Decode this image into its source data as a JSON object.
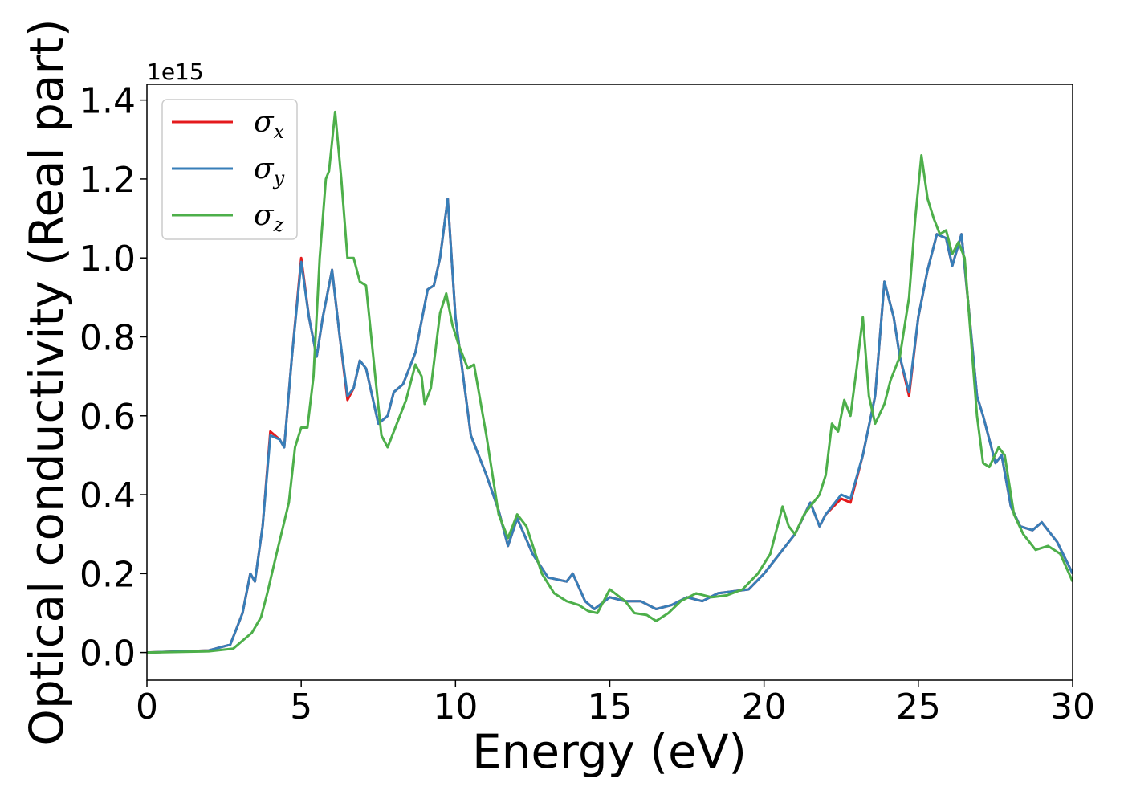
{
  "chart_data": {
    "type": "line",
    "xlabel": "Energy (eV)",
    "ylabel": "Optical conductivity (Real part)",
    "y_offset_text": "1e15",
    "xlim": [
      0,
      30
    ],
    "ylim": [
      -0.07,
      1.44
    ],
    "xticks": [
      0,
      5,
      10,
      15,
      20,
      25,
      30
    ],
    "xtick_labels": [
      "0",
      "5",
      "10",
      "15",
      "20",
      "25",
      "30"
    ],
    "yticks": [
      0.0,
      0.2,
      0.4,
      0.6,
      0.8,
      1.0,
      1.2,
      1.4
    ],
    "ytick_labels": [
      "0.0",
      "0.2",
      "0.4",
      "0.6",
      "0.8",
      "1.0",
      "1.2",
      "1.4"
    ],
    "grid": false,
    "legend_position": "upper-left",
    "series": [
      {
        "name": "σx",
        "symbol": "σ",
        "subscript": "x",
        "color": "#e41a1c",
        "points": [
          [
            0,
            0
          ],
          [
            2,
            0.005
          ],
          [
            2.7,
            0.02
          ],
          [
            3.1,
            0.1
          ],
          [
            3.35,
            0.2
          ],
          [
            3.5,
            0.18
          ],
          [
            3.75,
            0.32
          ],
          [
            4.0,
            0.56
          ],
          [
            4.3,
            0.54
          ],
          [
            4.45,
            0.52
          ],
          [
            4.7,
            0.75
          ],
          [
            5.0,
            1.0
          ],
          [
            5.25,
            0.85
          ],
          [
            5.5,
            0.75
          ],
          [
            5.7,
            0.85
          ],
          [
            6.0,
            0.97
          ],
          [
            6.25,
            0.8
          ],
          [
            6.5,
            0.64
          ],
          [
            6.7,
            0.67
          ],
          [
            6.9,
            0.74
          ],
          [
            7.1,
            0.72
          ],
          [
            7.5,
            0.58
          ],
          [
            7.8,
            0.6
          ],
          [
            8.0,
            0.66
          ],
          [
            8.3,
            0.68
          ],
          [
            8.7,
            0.76
          ],
          [
            9.1,
            0.92
          ],
          [
            9.3,
            0.93
          ],
          [
            9.5,
            1.0
          ],
          [
            9.75,
            1.15
          ],
          [
            10.0,
            0.85
          ],
          [
            10.5,
            0.55
          ],
          [
            11.0,
            0.45
          ],
          [
            11.4,
            0.36
          ],
          [
            11.7,
            0.27
          ],
          [
            12.0,
            0.34
          ],
          [
            12.5,
            0.25
          ],
          [
            13.0,
            0.19
          ],
          [
            13.6,
            0.18
          ],
          [
            13.8,
            0.2
          ],
          [
            14.2,
            0.13
          ],
          [
            14.5,
            0.11
          ],
          [
            15.0,
            0.14
          ],
          [
            15.5,
            0.13
          ],
          [
            16.0,
            0.13
          ],
          [
            16.5,
            0.11
          ],
          [
            17.0,
            0.12
          ],
          [
            17.5,
            0.14
          ],
          [
            18.0,
            0.13
          ],
          [
            18.5,
            0.15
          ],
          [
            19.5,
            0.16
          ],
          [
            20.0,
            0.2
          ],
          [
            20.5,
            0.25
          ],
          [
            21.0,
            0.3
          ],
          [
            21.5,
            0.38
          ],
          [
            21.8,
            0.32
          ],
          [
            22.0,
            0.35
          ],
          [
            22.5,
            0.39
          ],
          [
            22.8,
            0.38
          ],
          [
            23.2,
            0.5
          ],
          [
            23.6,
            0.65
          ],
          [
            23.9,
            0.94
          ],
          [
            24.2,
            0.85
          ],
          [
            24.4,
            0.75
          ],
          [
            24.7,
            0.65
          ],
          [
            25.0,
            0.85
          ],
          [
            25.3,
            0.97
          ],
          [
            25.6,
            1.06
          ],
          [
            25.9,
            1.05
          ],
          [
            26.1,
            0.98
          ],
          [
            26.4,
            1.06
          ],
          [
            26.6,
            0.9
          ],
          [
            26.9,
            0.65
          ],
          [
            27.1,
            0.6
          ],
          [
            27.5,
            0.48
          ],
          [
            27.7,
            0.5
          ],
          [
            28.0,
            0.37
          ],
          [
            28.3,
            0.32
          ],
          [
            28.7,
            0.31
          ],
          [
            29.0,
            0.33
          ],
          [
            29.5,
            0.28
          ],
          [
            30.0,
            0.2
          ]
        ]
      },
      {
        "name": "σy",
        "symbol": "σ",
        "subscript": "y",
        "color": "#377eb8",
        "points": [
          [
            0,
            0
          ],
          [
            2,
            0.005
          ],
          [
            2.7,
            0.02
          ],
          [
            3.1,
            0.1
          ],
          [
            3.35,
            0.2
          ],
          [
            3.5,
            0.18
          ],
          [
            3.75,
            0.32
          ],
          [
            4.0,
            0.55
          ],
          [
            4.3,
            0.54
          ],
          [
            4.45,
            0.52
          ],
          [
            4.7,
            0.75
          ],
          [
            5.0,
            0.99
          ],
          [
            5.25,
            0.85
          ],
          [
            5.5,
            0.75
          ],
          [
            5.7,
            0.85
          ],
          [
            6.0,
            0.97
          ],
          [
            6.25,
            0.8
          ],
          [
            6.5,
            0.65
          ],
          [
            6.7,
            0.67
          ],
          [
            6.9,
            0.74
          ],
          [
            7.1,
            0.72
          ],
          [
            7.5,
            0.58
          ],
          [
            7.8,
            0.6
          ],
          [
            8.0,
            0.66
          ],
          [
            8.3,
            0.68
          ],
          [
            8.7,
            0.76
          ],
          [
            9.1,
            0.92
          ],
          [
            9.3,
            0.93
          ],
          [
            9.5,
            1.0
          ],
          [
            9.75,
            1.15
          ],
          [
            10.0,
            0.85
          ],
          [
            10.5,
            0.55
          ],
          [
            11.0,
            0.45
          ],
          [
            11.4,
            0.36
          ],
          [
            11.7,
            0.27
          ],
          [
            12.0,
            0.34
          ],
          [
            12.5,
            0.25
          ],
          [
            13.0,
            0.19
          ],
          [
            13.6,
            0.18
          ],
          [
            13.8,
            0.2
          ],
          [
            14.2,
            0.13
          ],
          [
            14.5,
            0.11
          ],
          [
            15.0,
            0.14
          ],
          [
            15.5,
            0.13
          ],
          [
            16.0,
            0.13
          ],
          [
            16.5,
            0.11
          ],
          [
            17.0,
            0.12
          ],
          [
            17.5,
            0.14
          ],
          [
            18.0,
            0.13
          ],
          [
            18.5,
            0.15
          ],
          [
            19.5,
            0.16
          ],
          [
            20.0,
            0.2
          ],
          [
            20.5,
            0.25
          ],
          [
            21.0,
            0.3
          ],
          [
            21.5,
            0.38
          ],
          [
            21.8,
            0.32
          ],
          [
            22.0,
            0.35
          ],
          [
            22.5,
            0.4
          ],
          [
            22.8,
            0.39
          ],
          [
            23.2,
            0.5
          ],
          [
            23.6,
            0.65
          ],
          [
            23.9,
            0.94
          ],
          [
            24.2,
            0.85
          ],
          [
            24.4,
            0.75
          ],
          [
            24.7,
            0.66
          ],
          [
            25.0,
            0.85
          ],
          [
            25.3,
            0.97
          ],
          [
            25.6,
            1.06
          ],
          [
            25.9,
            1.05
          ],
          [
            26.1,
            0.98
          ],
          [
            26.4,
            1.06
          ],
          [
            26.6,
            0.9
          ],
          [
            26.9,
            0.65
          ],
          [
            27.1,
            0.6
          ],
          [
            27.5,
            0.48
          ],
          [
            27.7,
            0.5
          ],
          [
            28.0,
            0.37
          ],
          [
            28.3,
            0.32
          ],
          [
            28.7,
            0.31
          ],
          [
            29.0,
            0.33
          ],
          [
            29.5,
            0.28
          ],
          [
            30.0,
            0.2
          ]
        ]
      },
      {
        "name": "σz",
        "symbol": "σ",
        "subscript": "z",
        "color": "#4daf4a",
        "points": [
          [
            0,
            0
          ],
          [
            2,
            0.003
          ],
          [
            2.8,
            0.01
          ],
          [
            3.1,
            0.03
          ],
          [
            3.4,
            0.05
          ],
          [
            3.7,
            0.09
          ],
          [
            3.9,
            0.15
          ],
          [
            4.2,
            0.25
          ],
          [
            4.6,
            0.38
          ],
          [
            4.8,
            0.52
          ],
          [
            5.0,
            0.57
          ],
          [
            5.2,
            0.57
          ],
          [
            5.4,
            0.7
          ],
          [
            5.6,
            1.0
          ],
          [
            5.8,
            1.2
          ],
          [
            5.9,
            1.22
          ],
          [
            6.1,
            1.37
          ],
          [
            6.3,
            1.2
          ],
          [
            6.5,
            1.0
          ],
          [
            6.7,
            1.0
          ],
          [
            6.9,
            0.94
          ],
          [
            7.1,
            0.93
          ],
          [
            7.4,
            0.7
          ],
          [
            7.6,
            0.55
          ],
          [
            7.8,
            0.52
          ],
          [
            8.1,
            0.58
          ],
          [
            8.4,
            0.64
          ],
          [
            8.7,
            0.73
          ],
          [
            8.9,
            0.7
          ],
          [
            9.0,
            0.63
          ],
          [
            9.2,
            0.67
          ],
          [
            9.5,
            0.86
          ],
          [
            9.7,
            0.91
          ],
          [
            9.9,
            0.83
          ],
          [
            10.1,
            0.78
          ],
          [
            10.4,
            0.72
          ],
          [
            10.6,
            0.73
          ],
          [
            11.0,
            0.55
          ],
          [
            11.4,
            0.35
          ],
          [
            11.7,
            0.29
          ],
          [
            12.0,
            0.35
          ],
          [
            12.3,
            0.32
          ],
          [
            12.8,
            0.2
          ],
          [
            13.2,
            0.15
          ],
          [
            13.6,
            0.13
          ],
          [
            14.0,
            0.12
          ],
          [
            14.3,
            0.105
          ],
          [
            14.6,
            0.1
          ],
          [
            15.0,
            0.16
          ],
          [
            15.5,
            0.13
          ],
          [
            15.8,
            0.1
          ],
          [
            16.2,
            0.095
          ],
          [
            16.5,
            0.08
          ],
          [
            16.9,
            0.1
          ],
          [
            17.3,
            0.13
          ],
          [
            17.8,
            0.15
          ],
          [
            18.3,
            0.14
          ],
          [
            18.8,
            0.145
          ],
          [
            19.3,
            0.16
          ],
          [
            19.8,
            0.2
          ],
          [
            20.2,
            0.25
          ],
          [
            20.6,
            0.37
          ],
          [
            20.8,
            0.32
          ],
          [
            21.0,
            0.3
          ],
          [
            21.3,
            0.35
          ],
          [
            21.8,
            0.4
          ],
          [
            22.0,
            0.45
          ],
          [
            22.2,
            0.58
          ],
          [
            22.4,
            0.56
          ],
          [
            22.6,
            0.64
          ],
          [
            22.8,
            0.6
          ],
          [
            23.0,
            0.72
          ],
          [
            23.2,
            0.85
          ],
          [
            23.4,
            0.65
          ],
          [
            23.6,
            0.58
          ],
          [
            23.9,
            0.63
          ],
          [
            24.1,
            0.69
          ],
          [
            24.4,
            0.75
          ],
          [
            24.7,
            0.9
          ],
          [
            24.9,
            1.1
          ],
          [
            25.1,
            1.26
          ],
          [
            25.3,
            1.15
          ],
          [
            25.5,
            1.1
          ],
          [
            25.7,
            1.06
          ],
          [
            25.9,
            1.07
          ],
          [
            26.1,
            1.01
          ],
          [
            26.3,
            1.04
          ],
          [
            26.5,
            1.0
          ],
          [
            26.7,
            0.8
          ],
          [
            26.9,
            0.6
          ],
          [
            27.1,
            0.48
          ],
          [
            27.3,
            0.47
          ],
          [
            27.6,
            0.52
          ],
          [
            27.8,
            0.5
          ],
          [
            28.1,
            0.35
          ],
          [
            28.4,
            0.3
          ],
          [
            28.8,
            0.26
          ],
          [
            29.2,
            0.27
          ],
          [
            29.6,
            0.25
          ],
          [
            30.0,
            0.18
          ]
        ]
      }
    ]
  }
}
